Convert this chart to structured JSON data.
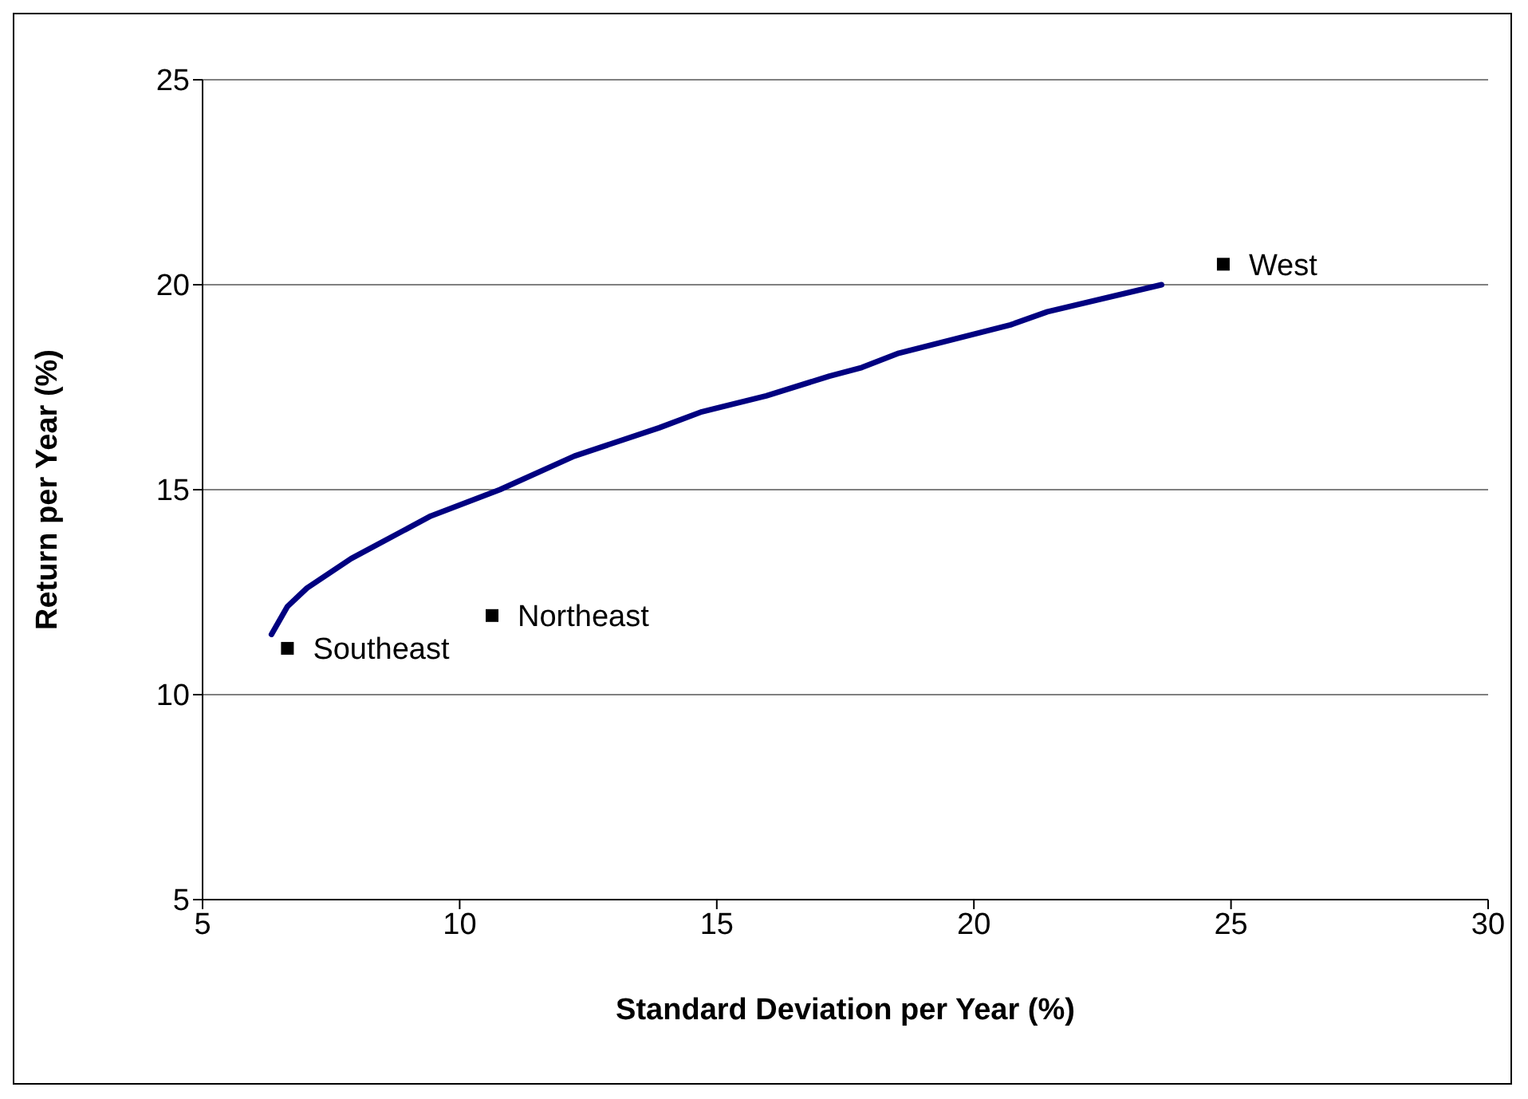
{
  "chart_data": {
    "type": "line",
    "xlabel": "Standard Deviation per Year (%)",
    "ylabel": "Return per Year (%)",
    "xlim": [
      5,
      30
    ],
    "xticks": [
      5,
      10,
      15,
      20,
      25,
      30
    ],
    "ylim": [
      5,
      25
    ],
    "yticks": [
      5,
      10,
      15,
      20,
      25
    ],
    "grid": "y",
    "series": [
      {
        "color": "#000080",
        "marker": "none",
        "line_style": "solid",
        "x": [
          6.34,
          6.65,
          7.03,
          7.89,
          9.44,
          10.78,
          12.23,
          13.88,
          14.71,
          15.96,
          17.19,
          17.82,
          18.54,
          20.71,
          21.43,
          23.65
        ],
        "values": [
          11.47,
          12.15,
          12.6,
          13.32,
          14.36,
          15.0,
          15.82,
          16.51,
          16.9,
          17.29,
          17.77,
          17.98,
          18.33,
          19.02,
          19.34,
          20.0
        ]
      },
      {
        "type": "scatter",
        "color": "#000000",
        "marker": "square",
        "x": [
          6.65,
          10.63,
          24.85
        ],
        "values": [
          11.13,
          11.93,
          20.5
        ]
      }
    ],
    "annotations": [
      {
        "text": "Southeast",
        "x": 6.65,
        "y": 11.13
      },
      {
        "text": "Northeast",
        "x": 10.63,
        "y": 11.93
      },
      {
        "text": "West",
        "x": 24.85,
        "y": 20.5
      }
    ]
  }
}
